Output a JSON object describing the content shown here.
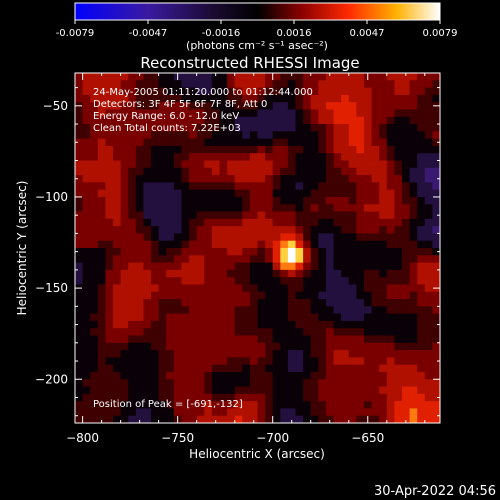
{
  "chart_data": {
    "type": "heatmap",
    "title": "Reconstructed RHESSI Image",
    "colorbar": {
      "ticks": [
        "-0.0079",
        "-0.0047",
        "-0.0016",
        "0.0016",
        "0.0047",
        "0.0079"
      ],
      "range": [
        -0.0079,
        0.0079
      ],
      "unit_label": "(photons cm⁻² s⁻¹ asec⁻²)",
      "colormap": [
        "#0000ff",
        "#4a2a8a",
        "#000000",
        "#8a0000",
        "#ff2a00",
        "#ffb000",
        "#ffffff"
      ]
    },
    "xlabel": "Heliocentric X (arcsec)",
    "ylabel": "Heliocentric Y (arcsec)",
    "xlim": [
      -804,
      -612
    ],
    "ylim": [
      -224,
      -32
    ],
    "x_ticks": [
      -800,
      -750,
      -700,
      -650
    ],
    "x_tick_labels": [
      "−800",
      "−750",
      "−700",
      "−650"
    ],
    "y_ticks": [
      -50,
      -100,
      -150,
      -200
    ],
    "y_tick_labels": [
      "−50",
      "−100",
      "−150",
      "−200"
    ],
    "annotations": [
      "24-May-2005 01:11:20.000 to 01:12:44.000",
      "Detectors: 3F 4F 5F 6F 7F 8F, Att 0",
      "Energy Range: 6.0 - 12.0 keV",
      "Clean     Total counts: 7.22E+03"
    ],
    "peak_label": "Position of Peak = [-691,-132]",
    "peak": {
      "x": -691,
      "y": -132
    },
    "footer_date": "30-Apr-2022 04:56"
  }
}
